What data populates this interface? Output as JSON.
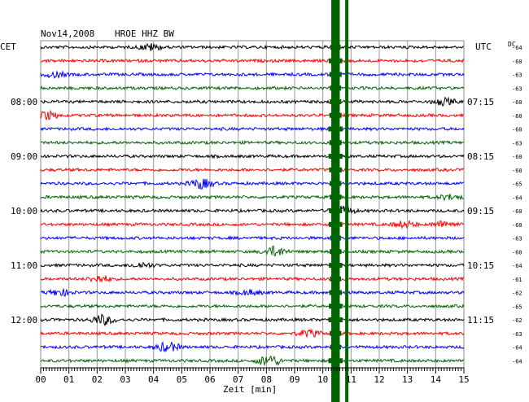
{
  "header": {
    "date": "Nov14,2008",
    "station": "HROE HHZ BW",
    "left_zone": "CET",
    "right_zone": "UTC",
    "dc_label": "DC"
  },
  "chart_data": {
    "type": "line",
    "title": "Nov14,2008   HROE HHZ BW",
    "xlabel": "Zeit [min]",
    "xlim": [
      0,
      15
    ],
    "x_ticks": [
      "00",
      "01",
      "02",
      "03",
      "04",
      "05",
      "06",
      "07",
      "08",
      "09",
      "10",
      "11",
      "12",
      "13",
      "14",
      "15"
    ],
    "grid": true,
    "trace_colors": [
      "#000000",
      "#ff0000",
      "#0000ff",
      "#006400"
    ],
    "left_time_labels": [
      {
        "trace": 4,
        "label": "08:00"
      },
      {
        "trace": 8,
        "label": "09:00"
      },
      {
        "trace": 12,
        "label": "10:00"
      },
      {
        "trace": 16,
        "label": "11:00"
      },
      {
        "trace": 20,
        "label": "12:00"
      }
    ],
    "right_time_labels": [
      {
        "trace": 4,
        "label": "07:15"
      },
      {
        "trace": 8,
        "label": "08:15"
      },
      {
        "trace": 12,
        "label": "09:15"
      },
      {
        "trace": 16,
        "label": "10:15"
      },
      {
        "trace": 20,
        "label": "11:15"
      }
    ],
    "dc_offsets": [
      "-64",
      "-60",
      "-63",
      "-63",
      "-60",
      "-60",
      "-60",
      "-63",
      "-60",
      "-60",
      "-65",
      "-64",
      "-60",
      "-60",
      "-63",
      "-60",
      "-64",
      "-61",
      "-62",
      "-65",
      "-62",
      "-63",
      "-64",
      "-64"
    ],
    "saturation_event": {
      "x_start": 10.3,
      "x_end": 10.6,
      "x_line": 10.85,
      "color": "#006400"
    },
    "events": [
      {
        "trace": 0,
        "x": 3.9,
        "amp": 4
      },
      {
        "trace": 2,
        "x": 0.5,
        "amp": 3
      },
      {
        "trace": 4,
        "x": 14.3,
        "amp": 4
      },
      {
        "trace": 5,
        "x": 0.2,
        "amp": 5
      },
      {
        "trace": 10,
        "x": 5.7,
        "amp": 6
      },
      {
        "trace": 11,
        "x": 14.5,
        "amp": 3
      },
      {
        "trace": 12,
        "x": 10.7,
        "amp": 5
      },
      {
        "trace": 13,
        "x": 12.9,
        "amp": 4
      },
      {
        "trace": 13,
        "x": 14.3,
        "amp": 4
      },
      {
        "trace": 15,
        "x": 8.3,
        "amp": 6
      },
      {
        "trace": 16,
        "x": 3.6,
        "amp": 3
      },
      {
        "trace": 17,
        "x": 2.1,
        "amp": 4
      },
      {
        "trace": 18,
        "x": 0.7,
        "amp": 4
      },
      {
        "trace": 18,
        "x": 7.4,
        "amp": 3
      },
      {
        "trace": 20,
        "x": 2.2,
        "amp": 6
      },
      {
        "trace": 21,
        "x": 9.5,
        "amp": 4
      },
      {
        "trace": 22,
        "x": 4.5,
        "amp": 6
      },
      {
        "trace": 23,
        "x": 8.1,
        "amp": 7
      }
    ]
  }
}
